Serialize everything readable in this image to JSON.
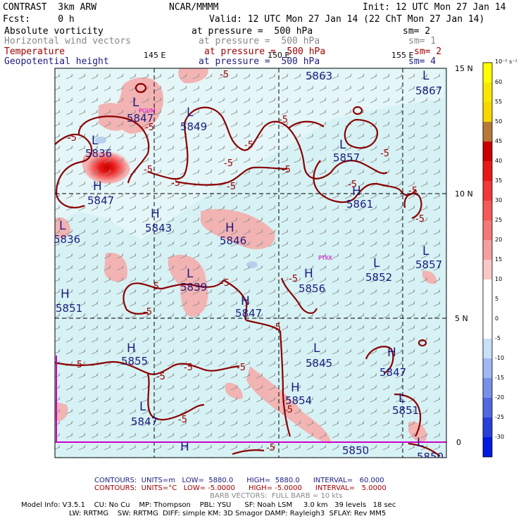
{
  "header": {
    "model": "CONTRAST  3km ARW",
    "org": "NCAR/MMMM",
    "init": "Init: 12 UTC Mon 27 Jan 14",
    "fcst": "Fcst:     0 h",
    "valid": "Valid: 12 UTC Mon 27 Jan 14 (22 ChT Mon 27 Jan 14)"
  },
  "fields": [
    {
      "name": "Absolute vorticity",
      "level": "at pressure =  500 hPa",
      "sm": "sm= 2"
    },
    {
      "name": "Horizontal wind vectors",
      "level": "at pressure =  500 hPa",
      "sm": "sm= 1"
    },
    {
      "name": "Temperature",
      "level": "at pressure =  500 hPa",
      "sm": "sm= 2"
    },
    {
      "name": "Geopotential height",
      "level": "at pressure =  500 hPa",
      "sm": "sm= 4"
    }
  ],
  "axes": {
    "lon_labels": [
      "145 E",
      "150 E",
      "155 E"
    ],
    "lat_labels": [
      "15 N",
      "10 N",
      "5 N",
      "0"
    ]
  },
  "colorbar": {
    "unit": "10⁻⁵ s⁻¹",
    "labels": [
      "60",
      "55",
      "50",
      "45",
      "40",
      "35",
      "30",
      "25",
      "20",
      "15",
      "10",
      "5",
      "0",
      "-5",
      "-10",
      "-15",
      "-20",
      "-25",
      "-30"
    ],
    "colors": [
      "#ffff00",
      "#f8e800",
      "#f4d800",
      "#b87838",
      "#c80000",
      "#e81818",
      "#f03838",
      "#f45858",
      "#f47878",
      "#f4a0a0",
      "#f8c8c8",
      "#ffffff",
      "#ffffff",
      "#ffffff",
      "#c8e0f8",
      "#a0b8f0",
      "#7890e8",
      "#5068e0",
      "#2840d8",
      "#0018e0"
    ]
  },
  "labels": {
    "height_values": [
      "5863",
      "5867",
      "5847",
      "5849",
      "5836",
      "5857",
      "5847",
      "5861",
      "5843",
      "5836",
      "5846",
      "5857",
      "5852",
      "5839",
      "5856",
      "5851",
      "5847",
      "5855",
      "5845",
      "5847",
      "5854",
      "5851",
      "5847",
      "5850",
      "5850"
    ],
    "temp_values": [
      "-5"
    ],
    "stations": [
      "PGUM",
      "PTKK"
    ]
  },
  "footer": {
    "contours1_lbl": "CONTOURS:  UNITS=m   LOW=  5880.0      HIGH=  5880.0      INTERVAL=   60.000",
    "contours2_lbl": "CONTOURS:  UNITS=°C   LOW= -5.0000      HIGH= -5.0000      INTERVAL=   5.0000",
    "barb": "BARB VECTORS:  FULL BARB = 10 kts",
    "model_info1": "Model Info: V3.5.1    CU: No Cu    MP: Thompson    PBL: YSU      SF: Noah LSM     3.0 km   39 levels   18 sec",
    "model_info2": "LW: RRTMG    SW: RRTMG  DIFF: simple KM: 3D Smagor DAMP: Rayleigh3  SFLAY: Rev MM5"
  }
}
